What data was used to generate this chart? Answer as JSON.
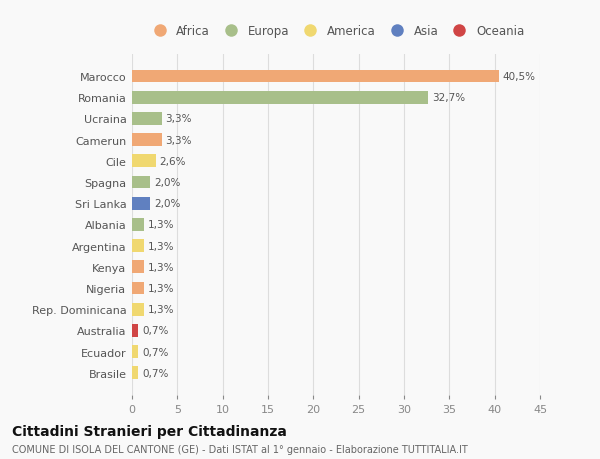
{
  "categories": [
    "Brasile",
    "Ecuador",
    "Australia",
    "Rep. Dominicana",
    "Nigeria",
    "Kenya",
    "Argentina",
    "Albania",
    "Sri Lanka",
    "Spagna",
    "Cile",
    "Camerun",
    "Ucraina",
    "Romania",
    "Marocco"
  ],
  "values": [
    0.7,
    0.7,
    0.7,
    1.3,
    1.3,
    1.3,
    1.3,
    1.3,
    2.0,
    2.0,
    2.6,
    3.3,
    3.3,
    32.7,
    40.5
  ],
  "labels": [
    "0,7%",
    "0,7%",
    "0,7%",
    "1,3%",
    "1,3%",
    "1,3%",
    "1,3%",
    "1,3%",
    "2,0%",
    "2,0%",
    "2,6%",
    "3,3%",
    "3,3%",
    "32,7%",
    "40,5%"
  ],
  "continent_colors": {
    "Africa": "#f0a875",
    "Europa": "#a8bf8a",
    "America": "#f0d870",
    "Asia": "#6080c0",
    "Oceania": "#d04545"
  },
  "legend_items": [
    "Africa",
    "Europa",
    "America",
    "Asia",
    "Oceania"
  ],
  "xlim": [
    0,
    45
  ],
  "xticks": [
    0,
    5,
    10,
    15,
    20,
    25,
    30,
    35,
    40,
    45
  ],
  "title": "Cittadini Stranieri per Cittadinanza",
  "subtitle": "COMUNE DI ISOLA DEL CANTONE (GE) - Dati ISTAT al 1° gennaio - Elaborazione TUTTITALIA.IT",
  "bg_color": "#f9f9f9",
  "grid_color": "#dddddd",
  "bar_height": 0.6,
  "continent_map": {
    "Brasile": "America",
    "Ecuador": "America",
    "Australia": "Oceania",
    "Rep. Dominicana": "America",
    "Nigeria": "Africa",
    "Kenya": "Africa",
    "Argentina": "America",
    "Albania": "Europa",
    "Sri Lanka": "Asia",
    "Spagna": "Europa",
    "Cile": "America",
    "Camerun": "Africa",
    "Ucraina": "Europa",
    "Romania": "Europa",
    "Marocco": "Africa"
  }
}
